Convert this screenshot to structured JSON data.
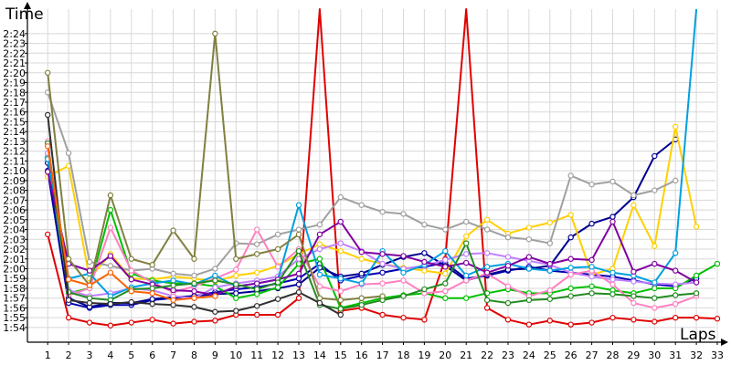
{
  "chart_data": {
    "type": "line",
    "title": "",
    "xlabel": "Laps",
    "ylabel": "Time",
    "x": [
      1,
      2,
      3,
      4,
      5,
      6,
      7,
      8,
      9,
      10,
      11,
      12,
      13,
      14,
      15,
      16,
      17,
      18,
      19,
      20,
      21,
      22,
      23,
      24,
      25,
      26,
      27,
      28,
      29,
      30,
      31,
      32,
      33
    ],
    "xlim": [
      0,
      33
    ],
    "ylim_seconds": [
      112.5,
      146.5
    ],
    "y_tick_seconds": [
      114,
      115,
      116,
      117,
      118,
      119,
      120,
      121,
      122,
      123,
      124,
      125,
      126,
      127,
      128,
      129,
      130,
      131,
      132,
      133,
      134,
      135,
      136,
      137,
      138,
      139,
      140,
      141,
      142,
      143,
      144
    ],
    "y_tick_labels": [
      "1:54",
      "1:55",
      "1:56",
      "1:57",
      "1:58",
      "1:59",
      "2:00",
      "2:01",
      "2:02",
      "2:03",
      "2:04",
      "2:05",
      "2:06",
      "2:07",
      "2:08",
      "2:09",
      "2:10",
      "2:11",
      "2:12",
      "2:13",
      "2:14",
      "2:15",
      "2:16",
      "2:17",
      "2:18",
      "2:19",
      "2:20",
      "2:21",
      "2:22",
      "2:23",
      "2:24"
    ],
    "x_tick_labels": [
      "1",
      "2",
      "3",
      "4",
      "5",
      "6",
      "7",
      "8",
      "9",
      "10",
      "11",
      "12",
      "13",
      "14",
      "15",
      "16",
      "17",
      "18",
      "19",
      "20",
      "21",
      "22",
      "23",
      "24",
      "25",
      "26",
      "27",
      "28",
      "29",
      "30",
      "31",
      "32",
      "33"
    ],
    "grid": true,
    "legend": "none",
    "units": "lap time in seconds (m:ss shown on axis)",
    "series": [
      {
        "color": "#e00000",
        "values": [
          123.5,
          115.0,
          114.5,
          114.2,
          114.5,
          114.8,
          114.4,
          114.6,
          114.7,
          115.3,
          115.3,
          115.3,
          117.0,
          250,
          115.7,
          116.0,
          115.3,
          115.0,
          114.8,
          121.0,
          250,
          116.0,
          114.8,
          114.3,
          114.7,
          114.3,
          114.5,
          115.0,
          114.8,
          114.6,
          115.0,
          115.0,
          114.9
        ]
      },
      {
        "color": "#0000b0",
        "values": [
          130.0,
          116.5,
          116.0,
          116.3,
          116.3,
          116.8,
          117.0,
          117.2,
          117.6,
          117.9,
          118.1,
          118.5,
          119.0,
          120.5,
          118.8,
          119.3,
          119.6,
          120.0,
          120.2,
          120.6,
          119.0,
          119.3,
          119.8,
          120.2,
          119.8,
          119.6,
          119.4,
          119.2,
          118.8,
          118.4,
          118.2,
          119.0,
          null
        ]
      },
      {
        "color": "#000090",
        "values": [
          130.8,
          117.0,
          116.1,
          116.5,
          116.5,
          116.9,
          117.1,
          117.2,
          117.4,
          117.5,
          117.7,
          118.0,
          118.4,
          120.1,
          119.2,
          119.5,
          120.4,
          121.2,
          121.6,
          120.3,
          118.8,
          119.4,
          119.9,
          120.0,
          120.3,
          123.2,
          124.6,
          125.3,
          127.3,
          131.5,
          133.2,
          null,
          null
        ]
      },
      {
        "color": "#ffd000",
        "values": [
          129.4,
          130.5,
          119.0,
          121.5,
          119.0,
          118.9,
          119.2,
          119.0,
          118.7,
          119.3,
          119.6,
          120.3,
          121.5,
          122.5,
          121.8,
          121.0,
          120.5,
          120.1,
          119.8,
          119.5,
          123.3,
          125.0,
          123.6,
          124.2,
          124.7,
          125.5,
          119.4,
          120.0,
          126.5,
          122.3,
          134.5,
          124.3,
          null
        ]
      },
      {
        "color": "#00c000",
        "values": [
          131.4,
          117.5,
          118.0,
          126.0,
          119.5,
          118.8,
          118.5,
          118.5,
          118.2,
          117.0,
          117.4,
          118.1,
          120.5,
          121.0,
          116.0,
          116.5,
          117.0,
          117.3,
          117.5,
          117.0,
          117.0,
          117.5,
          117.9,
          117.5,
          117.5,
          118.0,
          118.2,
          117.8,
          117.5,
          118.0,
          118.0,
          119.3,
          120.5
        ]
      },
      {
        "color": "#a0a0a0",
        "values": [
          138.0,
          131.8,
          120.7,
          120.3,
          119.8,
          120.0,
          119.5,
          119.3,
          120.0,
          122.6,
          122.5,
          123.5,
          124.0,
          124.5,
          127.3,
          126.5,
          125.8,
          125.6,
          124.5,
          124.0,
          124.8,
          124.0,
          123.2,
          123.0,
          122.6,
          129.5,
          128.6,
          128.9,
          127.5,
          128.0,
          129.0,
          null,
          null
        ]
      },
      {
        "color": "#c080ff",
        "values": [
          131.8,
          117.8,
          117.2,
          117.5,
          118.0,
          117.8,
          117.2,
          117.0,
          118.1,
          118.5,
          118.8,
          119.2,
          121.0,
          122.0,
          122.6,
          121.8,
          120.5,
          120.0,
          120.3,
          120.9,
          121.5,
          121.6,
          121.2,
          120.8,
          120.4,
          119.6,
          119.2,
          118.9,
          118.7,
          118.5,
          118.4,
          118.6,
          null
        ]
      },
      {
        "color": "#ff80c0",
        "values": [
          133.0,
          117.3,
          118.0,
          124.2,
          119.8,
          118.6,
          117.6,
          118.2,
          119.0,
          119.9,
          124.0,
          120.2,
          122.0,
          118.2,
          117.7,
          118.4,
          118.5,
          118.8,
          117.5,
          117.7,
          118.8,
          119.5,
          118.2,
          117.2,
          117.8,
          119.4,
          119.8,
          118.4,
          116.5,
          116.0,
          116.4,
          117.2,
          null
        ]
      },
      {
        "color": "#00a0e0",
        "values": [
          131.2,
          119.0,
          119.5,
          117.2,
          118.1,
          118.5,
          118.8,
          118.4,
          119.3,
          118.2,
          118.5,
          118.9,
          126.5,
          119.4,
          119.0,
          118.5,
          121.8,
          119.6,
          120.4,
          121.8,
          119.3,
          120.2,
          120.5,
          120.0,
          119.8,
          120.1,
          120.2,
          119.6,
          119.3,
          118.6,
          121.6,
          250,
          null
        ]
      },
      {
        "color": "#8000a0",
        "values": [
          129.9,
          120.5,
          119.8,
          121.3,
          118.9,
          118.4,
          117.8,
          117.7,
          117.3,
          118.2,
          118.5,
          118.9,
          119.5,
          123.5,
          124.8,
          121.7,
          121.5,
          121.3,
          120.7,
          120.2,
          120.6,
          119.6,
          120.3,
          121.2,
          120.5,
          121.0,
          120.9,
          124.8,
          119.7,
          120.5,
          119.8,
          118.6,
          null
        ]
      },
      {
        "color": "#228b22",
        "values": [
          132.8,
          117.6,
          117.0,
          116.8,
          117.9,
          118.0,
          118.3,
          118.5,
          118.8,
          118.4,
          117.9,
          118.6,
          121.8,
          116.3,
          115.9,
          116.3,
          116.8,
          117.2,
          117.9,
          118.5,
          122.6,
          116.8,
          116.5,
          116.8,
          116.9,
          117.2,
          117.5,
          117.4,
          117.2,
          117.0,
          117.3,
          117.5,
          null
        ]
      },
      {
        "color": "#808040",
        "values": [
          140.0,
          121.0,
          118.3,
          127.5,
          121.0,
          120.4,
          123.9,
          121.0,
          144.0,
          121.0,
          121.5,
          122.0,
          123.5,
          117.0,
          116.8,
          117.0,
          117.2,
          null,
          null,
          null,
          null,
          null,
          null,
          null,
          null,
          null,
          null,
          null,
          null,
          null,
          null,
          null,
          null
        ]
      },
      {
        "color": "#303030",
        "values": [
          135.7,
          116.8,
          116.5,
          116.4,
          116.6,
          116.4,
          116.3,
          116.1,
          115.6,
          115.7,
          116.2,
          116.9,
          117.6,
          116.5,
          115.3,
          null,
          null,
          null,
          null,
          null,
          null,
          null,
          null,
          null,
          null,
          null,
          null,
          null,
          null,
          null,
          null,
          null,
          null
        ]
      },
      {
        "color": "#ff6000",
        "values": [
          132.5,
          118.9,
          118.3,
          119.6,
          117.7,
          117.5,
          116.8,
          117.0,
          117.2,
          null,
          null,
          null,
          null,
          null,
          null,
          null,
          null,
          null,
          null,
          null,
          null,
          null,
          null,
          null,
          null,
          null,
          null,
          null,
          null,
          null,
          null,
          null,
          null
        ]
      }
    ]
  }
}
